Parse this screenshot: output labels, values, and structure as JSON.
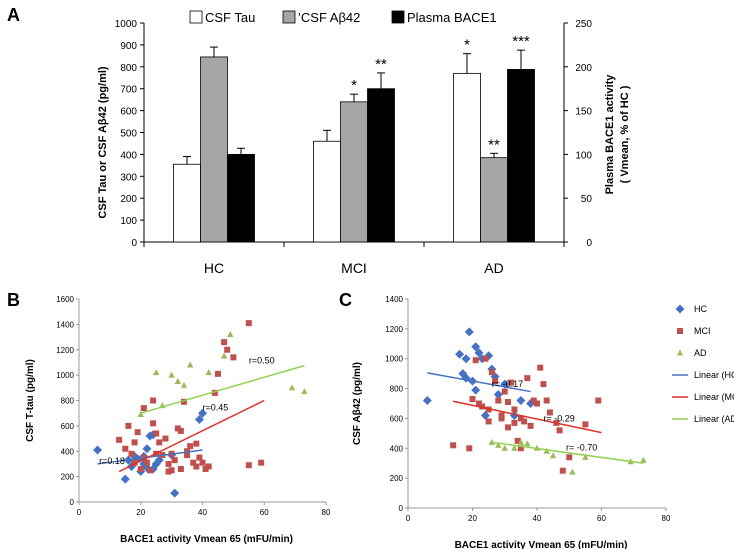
{
  "chart_data": [
    {
      "panel": "A",
      "type": "bar",
      "categories": [
        "HC",
        "MCI",
        "AD"
      ],
      "series": [
        {
          "name": "CSF Tau",
          "axis": "left",
          "color": "#ffffff",
          "values": [
            355,
            460,
            770
          ],
          "errors": [
            35,
            50,
            90
          ]
        },
        {
          "name": "CSF Aβ42",
          "axis": "left",
          "color": "#a6a6a6",
          "values": [
            845,
            640,
            385
          ],
          "errors": [
            45,
            35,
            20
          ]
        },
        {
          "name": "Plasma BACE1",
          "axis": "right",
          "color": "#000000",
          "values": [
            100,
            175,
            197
          ],
          "errors": [
            7,
            18,
            22
          ]
        }
      ],
      "legend_labels": [
        "CSF Tau",
        "’CSF Aβ42",
        "Plasma BACE1"
      ],
      "annotations": [
        {
          "category": "MCI",
          "series": 1,
          "text": "*"
        },
        {
          "category": "MCI",
          "series": 2,
          "text": "**"
        },
        {
          "category": "AD",
          "series": 0,
          "text": "*"
        },
        {
          "category": "AD",
          "series": 1,
          "text": "**"
        },
        {
          "category": "AD",
          "series": 2,
          "text": "***"
        }
      ],
      "ylabel": "CSF Tau or CSF Aβ42 (pg/ml)",
      "ylabel2_line1": "Plasma BACE1 activity",
      "ylabel2_line2": "( Vmean, % of HC )",
      "ylim": [
        0,
        1000
      ],
      "y2lim": [
        0,
        250
      ],
      "yticks": [
        "0",
        "100",
        "200",
        "300",
        "400",
        "500",
        "600",
        "700",
        "800",
        "900",
        "1000"
      ],
      "y2ticks": [
        "0",
        "50",
        "100",
        "150",
        "200",
        "250"
      ],
      "legend_position": "top"
    },
    {
      "panel": "B",
      "type": "scatter",
      "xlabel": "BACE1 activity Vmean 65 (mFU/min)",
      "ylabel": "CSF T-tau (pg/ml)",
      "xlim": [
        0,
        80
      ],
      "ylim": [
        0,
        1600
      ],
      "xticks": [
        "0",
        "20",
        "40",
        "60",
        "80"
      ],
      "yticks": [
        "0",
        "200",
        "400",
        "600",
        "800",
        "1000",
        "1200",
        "1400",
        "1600"
      ],
      "series": [
        {
          "name": "HC",
          "marker": "diamond",
          "color": "#4472c4",
          "points": [
            [
              6,
              410
            ],
            [
              15,
              180
            ],
            [
              16,
              330
            ],
            [
              17,
              280
            ],
            [
              18,
              360
            ],
            [
              19,
              340
            ],
            [
              20,
              240
            ],
            [
              21,
              300
            ],
            [
              21,
              360
            ],
            [
              22,
              270
            ],
            [
              22,
              420
            ],
            [
              23,
              520
            ],
            [
              24,
              530
            ],
            [
              24,
              260
            ],
            [
              25,
              300
            ],
            [
              26,
              330
            ],
            [
              30,
              370
            ],
            [
              31,
              70
            ],
            [
              39,
              650
            ],
            [
              40,
              700
            ]
          ]
        },
        {
          "name": "MCI",
          "marker": "square",
          "color": "#c0504d",
          "points": [
            [
              13,
              490
            ],
            [
              15,
              420
            ],
            [
              16,
              600
            ],
            [
              17,
              380
            ],
            [
              18,
              310
            ],
            [
              18,
              470
            ],
            [
              19,
              550
            ],
            [
              20,
              260
            ],
            [
              21,
              740
            ],
            [
              21,
              350
            ],
            [
              22,
              310
            ],
            [
              23,
              250
            ],
            [
              24,
              800
            ],
            [
              24,
              620
            ],
            [
              25,
              540
            ],
            [
              25,
              380
            ],
            [
              26,
              470
            ],
            [
              27,
              370
            ],
            [
              28,
              500
            ],
            [
              29,
              300
            ],
            [
              29,
              240
            ],
            [
              30,
              380
            ],
            [
              30,
              250
            ],
            [
              31,
              330
            ],
            [
              32,
              580
            ],
            [
              33,
              560
            ],
            [
              33,
              260
            ],
            [
              34,
              790
            ],
            [
              35,
              370
            ],
            [
              35,
              400
            ],
            [
              36,
              440
            ],
            [
              37,
              310
            ],
            [
              38,
              280
            ],
            [
              38,
              460
            ],
            [
              39,
              350
            ],
            [
              40,
              310
            ],
            [
              41,
              260
            ],
            [
              42,
              280
            ],
            [
              44,
              860
            ],
            [
              45,
              1010
            ],
            [
              47,
              1260
            ],
            [
              48,
              1200
            ],
            [
              50,
              1140
            ],
            [
              55,
              1410
            ],
            [
              55,
              290
            ],
            [
              59,
              310
            ]
          ]
        },
        {
          "name": "AD",
          "marker": "triangle",
          "color": "#9bbb59",
          "points": [
            [
              20,
              690
            ],
            [
              25,
              1020
            ],
            [
              27,
              760
            ],
            [
              30,
              1000
            ],
            [
              32,
              950
            ],
            [
              34,
              920
            ],
            [
              36,
              1080
            ],
            [
              42,
              1020
            ],
            [
              47,
              1150
            ],
            [
              49,
              1320
            ],
            [
              69,
              900
            ],
            [
              73,
              870
            ]
          ]
        }
      ],
      "fits": [
        {
          "name": "HC",
          "color": "#4472c4",
          "x": [
            6,
            40
          ],
          "y": [
            300,
            410
          ],
          "label": "r=0.18",
          "label_x": 6.5,
          "label_y": 300
        },
        {
          "name": "MCI",
          "color": "#e0302a",
          "x": [
            13,
            60
          ],
          "y": [
            240,
            800
          ],
          "label": "r=0.45",
          "label_x": 40,
          "label_y": 720
        },
        {
          "name": "AD",
          "color": "#92d050",
          "x": [
            20,
            73
          ],
          "y": [
            700,
            1075
          ],
          "label": "r=0.50",
          "label_x": 55,
          "label_y": 1090
        }
      ]
    },
    {
      "panel": "C",
      "type": "scatter",
      "xlabel": "BACE1 activity Vmean 65 (mFU/min)",
      "ylabel": "CSF Aβ42 (pg/ml)",
      "xlim": [
        0,
        80
      ],
      "ylim": [
        0,
        1400
      ],
      "xticks": [
        "0",
        "20",
        "40",
        "60",
        "80"
      ],
      "yticks": [
        "0",
        "200",
        "400",
        "600",
        "800",
        "1000",
        "1200",
        "1400"
      ],
      "legend_position": "right",
      "series": [
        {
          "name": "HC",
          "marker": "diamond",
          "color": "#4472c4",
          "points": [
            [
              6,
              720
            ],
            [
              16,
              1030
            ],
            [
              17,
              900
            ],
            [
              18,
              870
            ],
            [
              18,
              1000
            ],
            [
              19,
              1180
            ],
            [
              20,
              850
            ],
            [
              21,
              790
            ],
            [
              21,
              1080
            ],
            [
              22,
              1040
            ],
            [
              23,
              1000
            ],
            [
              24,
              620
            ],
            [
              25,
              1020
            ],
            [
              26,
              930
            ],
            [
              27,
              880
            ],
            [
              28,
              760
            ],
            [
              30,
              830
            ],
            [
              33,
              620
            ],
            [
              35,
              720
            ],
            [
              38,
              700
            ]
          ]
        },
        {
          "name": "MCI",
          "marker": "square",
          "color": "#c0504d",
          "points": [
            [
              14,
              420
            ],
            [
              19,
              400
            ],
            [
              20,
              730
            ],
            [
              21,
              990
            ],
            [
              22,
              700
            ],
            [
              23,
              680
            ],
            [
              24,
              1000
            ],
            [
              25,
              580
            ],
            [
              25,
              660
            ],
            [
              26,
              910
            ],
            [
              27,
              850
            ],
            [
              28,
              720
            ],
            [
              29,
              600
            ],
            [
              29,
              620
            ],
            [
              30,
              780
            ],
            [
              31,
              710
            ],
            [
              31,
              540
            ],
            [
              32,
              840
            ],
            [
              33,
              570
            ],
            [
              33,
              660
            ],
            [
              34,
              450
            ],
            [
              35,
              600
            ],
            [
              35,
              400
            ],
            [
              36,
              580
            ],
            [
              37,
              870
            ],
            [
              38,
              550
            ],
            [
              39,
              720
            ],
            [
              40,
              700
            ],
            [
              41,
              940
            ],
            [
              42,
              830
            ],
            [
              43,
              720
            ],
            [
              44,
              640
            ],
            [
              46,
              570
            ],
            [
              47,
              520
            ],
            [
              48,
              250
            ],
            [
              50,
              340
            ],
            [
              55,
              560
            ],
            [
              59,
              720
            ]
          ]
        },
        {
          "name": "AD",
          "marker": "triangle",
          "color": "#9bbb59",
          "points": [
            [
              26,
              440
            ],
            [
              28,
              420
            ],
            [
              30,
              400
            ],
            [
              33,
              400
            ],
            [
              35,
              440
            ],
            [
              37,
              430
            ],
            [
              40,
              400
            ],
            [
              43,
              380
            ],
            [
              45,
              350
            ],
            [
              51,
              240
            ],
            [
              55,
              340
            ],
            [
              69,
              310
            ],
            [
              73,
              320
            ]
          ]
        }
      ],
      "fits": [
        {
          "name": "Linear (HC)",
          "color": "#4472c4",
          "x": [
            6,
            38
          ],
          "y": [
            905,
            780
          ],
          "label": "r= -0.17",
          "label_x": 26,
          "label_y": 810
        },
        {
          "name": "Linear (MCI)",
          "color": "#e0302a",
          "x": [
            14,
            60
          ],
          "y": [
            715,
            505
          ],
          "label": "r= -0.29",
          "label_x": 42,
          "label_y": 580
        },
        {
          "name": "Linear (AD)",
          "color": "#92d050",
          "x": [
            26,
            73
          ],
          "y": [
            440,
            300
          ],
          "label": "r= -0.70",
          "label_x": 49,
          "label_y": 385
        }
      ],
      "legend": [
        "HC",
        "MCI",
        "AD",
        "Linear (HC)",
        "Linear (MCI)",
        "Linear (AD)"
      ]
    }
  ]
}
